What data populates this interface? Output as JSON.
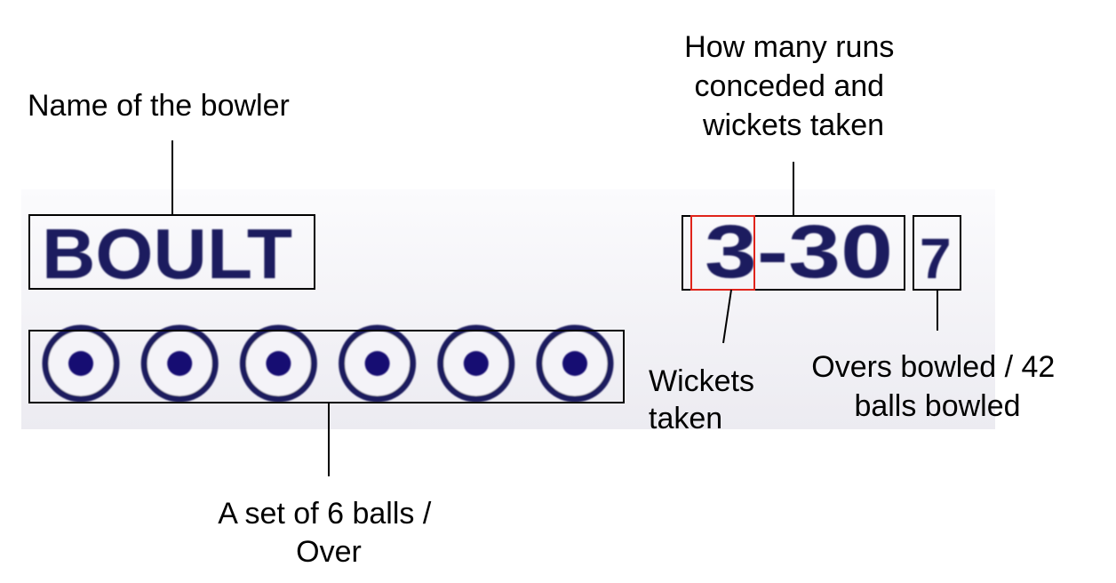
{
  "scorecard": {
    "bowler_name": "BOULT",
    "wickets": "3",
    "runs_suffix": "-30",
    "overs": "7",
    "balls_in_over": 6
  },
  "annotations": {
    "name": "Name of the bowler",
    "runs_wickets": [
      "How many runs",
      "conceded and",
      "wickets taken"
    ],
    "wickets_taken": [
      "Wickets",
      "taken"
    ],
    "overs": [
      "Overs bowled / 42",
      "balls bowled"
    ],
    "set_of_balls": [
      "A set of 6 balls /",
      "Over"
    ]
  },
  "colors": {
    "ink": "#1c1a5e",
    "ball_fill": "#150f72",
    "highlight_box": "#e0241b",
    "strip": "#f0eff5"
  }
}
